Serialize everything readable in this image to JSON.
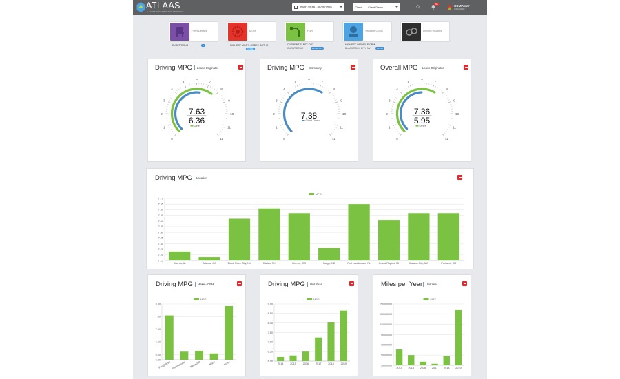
{
  "app": {
    "logo": "ATLAAS",
    "logo_sub": "A FLEET PERFORMANCE PRODUCT",
    "date_range": "09/01/2019 - 09/30/2019",
    "client_label": "Client",
    "client_value": "Client Demo",
    "notification_count": "99+",
    "company_name": "COMPANY",
    "company_sub": "LOGO HERE"
  },
  "tiles": [
    {
      "label": "Fleet Details",
      "caption": "EXCEPTIONS",
      "badge": "0",
      "color": "#7b4fa8"
    },
    {
      "label": "MGR",
      "caption": "HIGHEST MGR'S CODE / SOTHR",
      "badge": "CODE",
      "color": "#e5332a"
    },
    {
      "label": "Fuel",
      "caption": "CURRENT FLEET CO2",
      "sub": "CLIENT DEMO",
      "badge": "$1,020,479",
      "color": "#7cc242"
    },
    {
      "label": "Variable Costs",
      "caption": "HIGHEST VARIABLE CPM",
      "sub": "BLACK ROCK CITY, NV",
      "badge": "$0.287",
      "color": "#4ca4e3"
    },
    {
      "label": "Driving Insights",
      "caption": "",
      "color": "#2f2f2f"
    }
  ],
  "gauges": [
    {
      "title": "Driving MPG",
      "subtitle": "Lease Originator",
      "value_main": "7.63",
      "value_second": "6.36",
      "legend": "Other",
      "ticks": [
        "0",
        "1",
        "2",
        "3",
        "4",
        "5",
        "6",
        "7",
        "8",
        "9",
        "10",
        "11",
        "12"
      ],
      "show_second": true
    },
    {
      "title": "Driving MPG",
      "subtitle": "Company",
      "value_main": "7.38",
      "value_second": "",
      "legend": "Client Demo",
      "ticks": [
        "0",
        "1",
        "2",
        "3",
        "4",
        "5",
        "6",
        "7",
        "8",
        "9",
        "10",
        "11",
        "12"
      ],
      "show_second": false
    },
    {
      "title": "Overall MPG",
      "subtitle": "Lease Originator",
      "value_main": "7.36",
      "value_second": "5.95",
      "legend": "Other",
      "ticks": [
        "0",
        "1",
        "2",
        "3",
        "4",
        "5",
        "6",
        "7",
        "8",
        "9",
        "10",
        "11",
        "12"
      ],
      "show_second": true
    }
  ],
  "colors": {
    "green": "#7cc242",
    "blue": "#4b8bc4",
    "accent_red": "#e8262c"
  },
  "chart_data": [
    {
      "type": "bar",
      "title": "Driving MPG",
      "subtitle": "Location",
      "legend": "MPG",
      "categories": [
        "Atlanta, IA",
        "Atlanta, GA",
        "Black Rock City, NV",
        "Dallas, TX",
        "Denver, CO",
        "Fargo, ND",
        "Fort Lauderdale, FL",
        "Grand Rapids, MI",
        "Kansas City, MO",
        "Portland, OR"
      ],
      "values": [
        7.23,
        7.18,
        7.52,
        7.61,
        7.57,
        7.26,
        7.65,
        7.51,
        7.57,
        7.57
      ],
      "ylim": [
        7.15,
        7.7
      ],
      "yticks": [
        "7.15",
        "7.20",
        "7.25",
        "7.30",
        "7.35",
        "7.40",
        "7.45",
        "7.50",
        "7.55",
        "7.60",
        "7.65",
        "7.70"
      ]
    },
    {
      "type": "bar",
      "title": "Driving MPG",
      "subtitle": "Make - OEM",
      "legend": "MPG",
      "categories": [
        "Freightliner",
        "International",
        "Kenworth",
        "Mack",
        "Volvo"
      ],
      "values": [
        7.55,
        6.12,
        6.15,
        6.05,
        7.92
      ],
      "ylim": [
        5.8,
        8.0
      ],
      "yticks": [
        "5.80",
        "6.00",
        "6.50",
        "7.00",
        "7.50",
        "8.00"
      ]
    },
    {
      "type": "bar",
      "title": "Driving MPG",
      "subtitle": "Unit Year",
      "legend": "MPG",
      "categories": [
        "2014",
        "2015",
        "2016",
        "2017",
        "2018",
        "2019"
      ],
      "values": [
        6.22,
        6.3,
        6.5,
        7.24,
        8.03,
        8.65
      ],
      "ylim": [
        6.0,
        9.0
      ],
      "yticks": [
        "6.00",
        "6.50",
        "7.00",
        "7.50",
        "8.00",
        "8.50",
        "9.00"
      ]
    },
    {
      "type": "bar",
      "title": "Miles per Year",
      "subtitle": "Unit Year",
      "legend": "MPY",
      "categories": [
        "2014",
        "2015",
        "2016",
        "2017",
        "2018",
        "2019"
      ],
      "values": [
        61000,
        50000,
        37000,
        33000,
        48000,
        138000
      ],
      "ylim": [
        30000,
        150000
      ],
      "yticks": [
        "30,000.00",
        "50,000.00",
        "70,000.00",
        "90,000.00",
        "110,000.00",
        "130,000.00",
        "150,000.00"
      ]
    }
  ]
}
